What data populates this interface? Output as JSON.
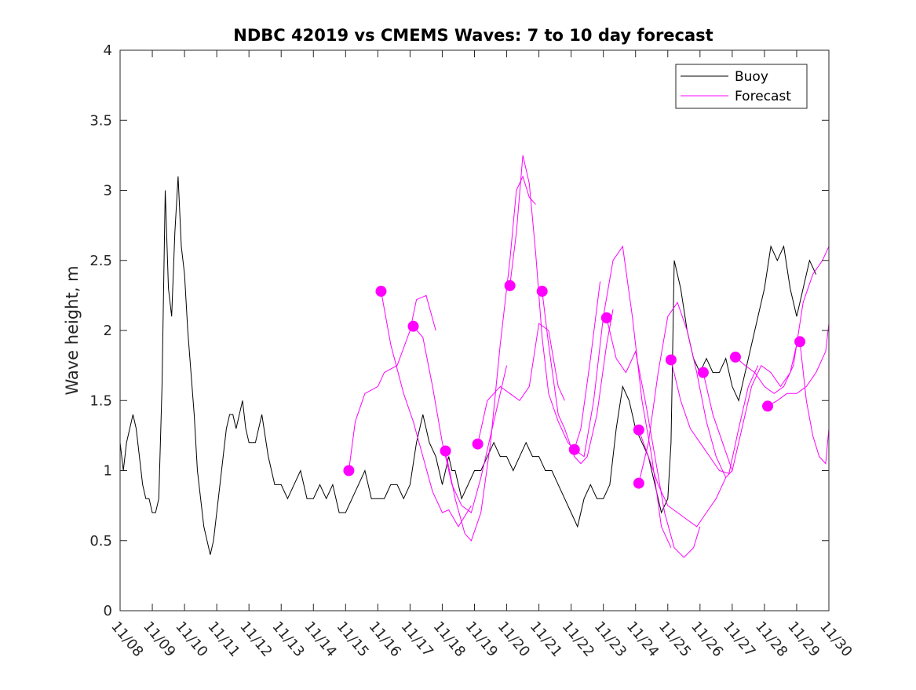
{
  "chart_data": {
    "type": "line",
    "title": "NDBC 42019 vs CMEMS Waves: 7 to 10 day forecast",
    "xlabel": "",
    "ylabel": "Wave height, m",
    "xlim": [
      0,
      22
    ],
    "ylim": [
      0,
      4
    ],
    "x_ticks": [
      0,
      1,
      2,
      3,
      4,
      5,
      6,
      7,
      8,
      9,
      10,
      11,
      12,
      13,
      14,
      15,
      16,
      17,
      18,
      19,
      20,
      21,
      22
    ],
    "x_tick_labels": [
      "11/08",
      "11/09",
      "11/10",
      "11/11",
      "11/12",
      "11/13",
      "11/14",
      "11/15",
      "11/16",
      "11/17",
      "11/18",
      "11/19",
      "11/20",
      "11/21",
      "11/22",
      "11/23",
      "11/24",
      "11/25",
      "11/26",
      "11/27",
      "11/28",
      "11/29",
      "11/30"
    ],
    "y_ticks": [
      0,
      0.5,
      1,
      1.5,
      2,
      2.5,
      3,
      3.5,
      4
    ],
    "y_tick_labels": [
      "0",
      "0.5",
      "1",
      "1.5",
      "2",
      "2.5",
      "3",
      "3.5",
      "4"
    ],
    "grid": false,
    "legend": {
      "position": "top-right",
      "entries": [
        "Buoy",
        "Forecast"
      ]
    },
    "colors": {
      "buoy": "#000000",
      "forecast": "#ff00ff",
      "axes": "#262626"
    },
    "series": [
      {
        "name": "Buoy",
        "x": [
          0,
          0.1,
          0.2,
          0.3,
          0.4,
          0.5,
          0.6,
          0.7,
          0.8,
          0.9,
          1.0,
          1.1,
          1.2,
          1.3,
          1.4,
          1.5,
          1.6,
          1.7,
          1.8,
          1.9,
          2.0,
          2.1,
          2.2,
          2.3,
          2.4,
          2.5,
          2.6,
          2.7,
          2.8,
          2.9,
          3.0,
          3.1,
          3.2,
          3.3,
          3.4,
          3.5,
          3.6,
          3.7,
          3.8,
          3.9,
          4.0,
          4.2,
          4.4,
          4.6,
          4.8,
          5.0,
          5.2,
          5.4,
          5.6,
          5.8,
          6.0,
          6.2,
          6.4,
          6.6,
          6.8,
          7.0,
          7.2,
          7.4,
          7.6,
          7.8,
          8.0,
          8.2,
          8.4,
          8.6,
          8.8,
          9.0,
          9.2,
          9.4,
          9.6,
          9.8,
          10.0,
          10.1,
          10.2,
          10.3,
          10.4,
          10.5,
          10.6,
          10.8,
          11.0,
          11.2,
          11.4,
          11.6,
          11.8,
          12.0,
          12.2,
          12.4,
          12.6,
          12.8,
          13.0,
          13.2,
          13.4,
          13.6,
          13.8,
          14.0,
          14.2,
          14.4,
          14.6,
          14.8,
          15.0,
          15.2,
          15.4,
          15.6,
          15.8,
          16.0,
          16.2,
          16.4,
          16.6,
          16.8,
          17.0,
          17.1,
          17.2,
          17.4,
          17.6,
          17.8,
          18.0,
          18.2,
          18.4,
          18.6,
          18.8,
          19.0,
          19.2,
          19.4,
          19.6,
          19.8,
          20.0,
          20.2,
          20.4,
          20.6,
          20.8,
          21.0,
          21.2,
          21.4,
          21.6
        ],
        "values": [
          1.2,
          1.0,
          1.2,
          1.3,
          1.4,
          1.3,
          1.1,
          0.9,
          0.8,
          0.8,
          0.7,
          0.7,
          0.8,
          1.6,
          3.0,
          2.3,
          2.1,
          2.7,
          3.1,
          2.6,
          2.4,
          2.0,
          1.7,
          1.4,
          1.0,
          0.8,
          0.6,
          0.5,
          0.4,
          0.5,
          0.7,
          0.9,
          1.1,
          1.3,
          1.4,
          1.4,
          1.3,
          1.4,
          1.5,
          1.3,
          1.2,
          1.2,
          1.4,
          1.1,
          0.9,
          0.9,
          0.8,
          0.9,
          1.0,
          0.8,
          0.8,
          0.9,
          0.8,
          0.9,
          0.7,
          0.7,
          0.8,
          0.9,
          1.0,
          0.8,
          0.8,
          0.8,
          0.9,
          0.9,
          0.8,
          0.9,
          1.2,
          1.4,
          1.2,
          1.1,
          0.9,
          1.0,
          1.1,
          1.0,
          1.0,
          0.9,
          0.8,
          0.9,
          1.0,
          1.0,
          1.1,
          1.2,
          1.1,
          1.1,
          1.0,
          1.1,
          1.2,
          1.1,
          1.1,
          1.0,
          1.0,
          0.9,
          0.8,
          0.7,
          0.6,
          0.8,
          0.9,
          0.8,
          0.8,
          0.9,
          1.3,
          1.6,
          1.5,
          1.3,
          1.2,
          1.1,
          0.9,
          0.7,
          0.8,
          1.2,
          2.5,
          2.3,
          2.0,
          1.8,
          1.7,
          1.8,
          1.7,
          1.7,
          1.8,
          1.6,
          1.5,
          1.7,
          1.9,
          2.1,
          2.3,
          2.6,
          2.5,
          2.6,
          2.3,
          2.1,
          2.3,
          2.5,
          2.4
        ]
      },
      {
        "name": "Forecast",
        "label_in_legend": false,
        "x": [
          7.1,
          7.3,
          7.6,
          8.0,
          8.2,
          8.6,
          9.0,
          9.2,
          9.5,
          9.8
        ],
        "values": [
          1.0,
          1.35,
          1.55,
          1.6,
          1.7,
          1.75,
          2.0,
          2.22,
          2.25,
          2.0
        ]
      },
      {
        "name": "Forecast",
        "x": [
          8.1,
          8.4,
          8.8,
          9.1,
          9.4,
          9.7,
          10.0,
          10.2,
          10.5,
          10.9
        ],
        "values": [
          2.28,
          1.9,
          1.55,
          1.35,
          1.1,
          0.85,
          0.7,
          0.72,
          0.6,
          0.75
        ]
      },
      {
        "name": "Forecast",
        "x": [
          9.1,
          9.4,
          9.7,
          10.0,
          10.3,
          10.6,
          10.9,
          11.2,
          11.5,
          11.8,
          12.0
        ],
        "values": [
          2.03,
          1.95,
          1.6,
          1.2,
          0.9,
          0.75,
          0.7,
          0.95,
          1.25,
          1.55,
          1.75
        ]
      },
      {
        "name": "Forecast",
        "x": [
          10.1,
          10.4,
          10.7,
          10.9,
          11.2,
          11.5,
          11.8,
          12.1,
          12.3,
          12.5,
          12.7,
          12.9
        ],
        "values": [
          1.14,
          0.8,
          0.55,
          0.5,
          0.7,
          1.2,
          1.9,
          2.5,
          3.0,
          3.1,
          2.95,
          2.9
        ]
      },
      {
        "name": "Forecast",
        "x": [
          11.1,
          11.4,
          11.8,
          12.1,
          12.4,
          12.7,
          13.0,
          13.3,
          13.6,
          13.8
        ],
        "values": [
          1.19,
          1.5,
          1.6,
          1.55,
          1.5,
          1.6,
          2.05,
          2.0,
          1.6,
          1.5
        ]
      },
      {
        "name": "Forecast",
        "x": [
          12.1,
          12.3,
          12.5,
          12.7,
          12.9,
          13.1,
          13.3,
          13.6,
          13.9,
          14.1,
          14.3,
          14.6,
          14.9
        ],
        "values": [
          2.32,
          2.7,
          3.25,
          3.05,
          2.55,
          1.95,
          1.55,
          1.35,
          1.2,
          1.15,
          1.3,
          1.8,
          2.35
        ]
      },
      {
        "name": "Forecast",
        "x": [
          13.1,
          13.3,
          13.6,
          13.8,
          14.1,
          14.3,
          14.5,
          14.8,
          15.1,
          15.3
        ],
        "values": [
          2.28,
          1.9,
          1.4,
          1.3,
          1.1,
          1.05,
          1.1,
          1.4,
          1.9,
          2.15
        ]
      },
      {
        "name": "Forecast",
        "x": [
          14.1,
          14.4,
          14.7,
          15.0,
          15.3,
          15.6,
          15.9,
          16.2,
          16.5,
          16.8,
          17.1
        ],
        "values": [
          1.15,
          1.1,
          1.5,
          2.1,
          2.5,
          2.6,
          2.1,
          1.5,
          1.1,
          0.6,
          0.45
        ]
      },
      {
        "name": "Forecast",
        "x": [
          15.1,
          15.4,
          15.7,
          16.0,
          16.3,
          16.6,
          16.9,
          17.2,
          17.5,
          17.8,
          18.0
        ],
        "values": [
          2.09,
          1.8,
          1.7,
          1.85,
          1.5,
          1.1,
          0.7,
          0.45,
          0.38,
          0.45,
          0.6
        ]
      },
      {
        "name": "Forecast",
        "x": [
          16.1,
          16.4,
          16.7,
          17.0,
          17.3,
          17.6,
          17.9,
          18.2,
          18.5,
          18.8,
          19.0
        ],
        "values": [
          0.91,
          1.2,
          1.7,
          2.1,
          2.2,
          2.0,
          1.7,
          1.35,
          1.1,
          0.95,
          1.0
        ]
      },
      {
        "name": "Forecast",
        "x": [
          16.1,
          16.4,
          16.7,
          17.0,
          17.3,
          17.6,
          17.9,
          18.2,
          18.5,
          18.8
        ],
        "values": [
          1.29,
          1.1,
          0.9,
          0.75,
          0.7,
          0.65,
          0.6,
          0.7,
          0.8,
          0.95
        ]
      },
      {
        "name": "Forecast",
        "x": [
          17.1,
          17.4,
          17.7,
          18.0,
          18.3,
          18.6,
          18.9,
          19.2,
          19.5,
          19.8
        ],
        "values": [
          1.79,
          1.5,
          1.3,
          1.2,
          1.1,
          1.0,
          0.98,
          1.3,
          1.6,
          1.75
        ]
      },
      {
        "name": "Forecast",
        "x": [
          18.1,
          18.4,
          18.7,
          19.0,
          19.3,
          19.6,
          19.9,
          20.2,
          20.5,
          20.8,
          21.0
        ],
        "values": [
          1.7,
          1.4,
          1.2,
          1.0,
          1.3,
          1.6,
          1.75,
          1.7,
          1.6,
          1.7,
          1.9
        ]
      },
      {
        "name": "Forecast",
        "x": [
          19.1,
          19.4,
          19.7,
          20.0,
          20.3,
          20.6,
          20.9,
          21.2,
          21.5,
          21.8,
          22.0
        ],
        "values": [
          1.81,
          1.75,
          1.7,
          1.6,
          1.55,
          1.6,
          1.75,
          2.2,
          2.4,
          2.5,
          2.6
        ]
      },
      {
        "name": "Forecast",
        "x": [
          20.1,
          20.4,
          20.7,
          21.0,
          21.3,
          21.6,
          21.9,
          22.0
        ],
        "values": [
          1.46,
          1.5,
          1.55,
          1.55,
          1.6,
          1.7,
          1.85,
          2.05
        ]
      },
      {
        "name": "Forecast",
        "x": [
          21.1,
          21.3,
          21.5,
          21.7,
          21.9,
          22.0
        ],
        "values": [
          1.92,
          1.5,
          1.25,
          1.1,
          1.05,
          1.3
        ]
      }
    ],
    "markers": {
      "name": "Forecast start",
      "x": [
        7.1,
        8.1,
        9.1,
        10.1,
        11.1,
        12.1,
        13.1,
        14.1,
        15.1,
        16.1,
        16.1,
        17.1,
        18.1,
        19.1,
        20.1,
        21.1
      ],
      "values": [
        1.0,
        2.28,
        2.03,
        1.14,
        1.19,
        2.32,
        2.28,
        1.15,
        2.09,
        0.91,
        1.29,
        1.79,
        1.7,
        1.81,
        1.46,
        1.92
      ]
    }
  }
}
